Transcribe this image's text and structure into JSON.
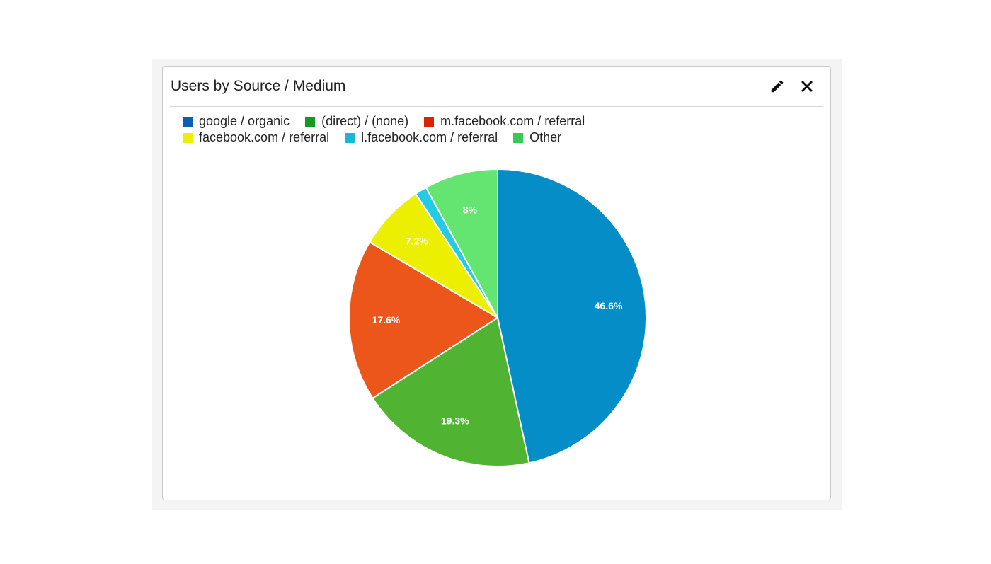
{
  "widget": {
    "title": "Users by Source / Medium"
  },
  "icons": {
    "edit": "pencil-icon",
    "close": "close-icon"
  },
  "legend_rows": [
    [
      0,
      1,
      2
    ],
    [
      3,
      4,
      5
    ]
  ],
  "chart_data": {
    "type": "pie",
    "title": "Users by Source / Medium",
    "legend_position": "top",
    "slices": [
      {
        "label": "google / organic",
        "value": 46.6,
        "data_label": "46.6%",
        "legend_color": "#0b5fb0",
        "slice_color": "#058dc7"
      },
      {
        "label": "(direct) / (none)",
        "value": 19.3,
        "data_label": "19.3%",
        "legend_color": "#0f9d1f",
        "slice_color": "#50b432"
      },
      {
        "label": "m.facebook.com / referral",
        "value": 17.6,
        "data_label": "17.6%",
        "legend_color": "#dd2200",
        "slice_color": "#ed561b"
      },
      {
        "label": "facebook.com / referral",
        "value": 7.2,
        "data_label": "7.2%",
        "legend_color": "#eeee00",
        "slice_color": "#edef00"
      },
      {
        "label": "l.facebook.com / referral",
        "value": 1.3,
        "data_label": "",
        "legend_color": "#1ab8d8",
        "slice_color": "#24cbe5"
      },
      {
        "label": "Other",
        "value": 8,
        "data_label": "8%",
        "legend_color": "#33cc55",
        "slice_color": "#64e572"
      }
    ]
  }
}
